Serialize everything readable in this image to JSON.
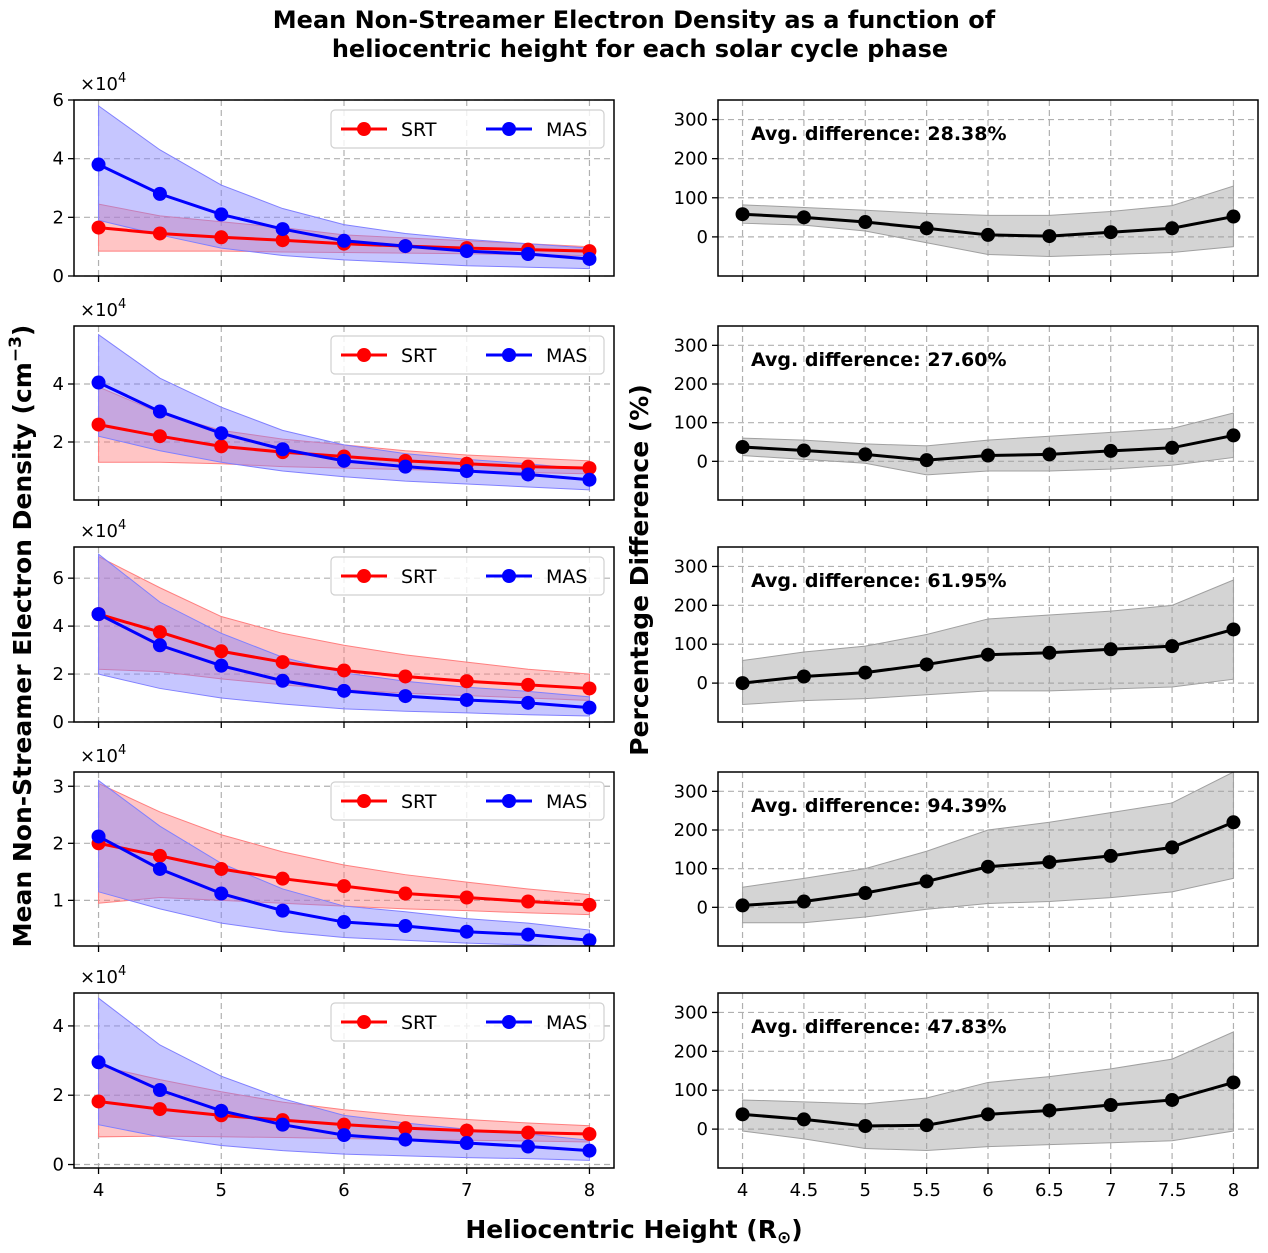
{
  "figure": {
    "title_line1": "Mean Non-Streamer Electron Density as a function of",
    "title_line2": "heliocentric height for each solar cycle phase",
    "xlabel_main": "Heliocentric Height (R",
    "xlabel_sub": "⊙",
    "xlabel_close": ")",
    "ylabel_left_main": "Mean Non-Streamer Electron Density (cm",
    "ylabel_left_sup": "−3",
    "ylabel_left_close": ")",
    "ylabel_right": "Percentage Difference (%)",
    "multiplier_base": "×10",
    "multiplier_exp": "4",
    "colors": {
      "srt": "#ff0000",
      "mas": "#0000ff",
      "diff": "#000000",
      "diff_band": "#a0a0a0"
    }
  },
  "chart_data": [
    {
      "type": "line",
      "panel": "density",
      "row": 1,
      "x": [
        4,
        4.5,
        5,
        5.5,
        6,
        6.5,
        7,
        7.5,
        8
      ],
      "xlim": [
        3.8,
        8.2
      ],
      "ylim": [
        0,
        6
      ],
      "yticks": [
        0,
        2,
        4,
        6
      ],
      "xticks": [
        4,
        5,
        6,
        7,
        8
      ],
      "units_multiplier": "×10^4",
      "legend": [
        "SRT",
        "MAS"
      ],
      "legend_position": "top-right",
      "series": [
        {
          "name": "SRT",
          "color": "#ff0000",
          "values": [
            1.65,
            1.45,
            1.32,
            1.22,
            1.1,
            1.02,
            0.95,
            0.9,
            0.85
          ],
          "lower": [
            0.85,
            0.85,
            0.85,
            0.82,
            0.8,
            0.78,
            0.76,
            0.72,
            0.7
          ],
          "upper": [
            2.45,
            2.05,
            1.85,
            1.65,
            1.4,
            1.3,
            1.2,
            1.1,
            1.0
          ]
        },
        {
          "name": "MAS",
          "color": "#0000ff",
          "values": [
            3.8,
            2.8,
            2.1,
            1.6,
            1.2,
            1.02,
            0.85,
            0.75,
            0.58
          ],
          "lower": [
            1.9,
            1.4,
            0.95,
            0.7,
            0.55,
            0.45,
            0.35,
            0.3,
            0.25
          ],
          "upper": [
            5.8,
            4.3,
            3.1,
            2.3,
            1.75,
            1.45,
            1.25,
            1.1,
            0.95
          ]
        }
      ]
    },
    {
      "type": "line",
      "panel": "difference",
      "row": 1,
      "x": [
        4,
        4.5,
        5,
        5.5,
        6,
        6.5,
        7,
        7.5,
        8
      ],
      "xlim": [
        3.8,
        8.2
      ],
      "ylim": [
        -100,
        350
      ],
      "yticks": [
        0,
        100,
        200,
        300
      ],
      "xticks": [
        4,
        4.5,
        5,
        5.5,
        6,
        6.5,
        7,
        7.5,
        8
      ],
      "annotation": "Avg. difference: 28.38%",
      "series": [
        {
          "name": "Percentage Difference",
          "color": "#000000",
          "values": [
            58,
            50,
            38,
            22,
            5,
            2,
            12,
            22,
            52
          ],
          "lower": [
            35,
            30,
            15,
            -15,
            -45,
            -50,
            -45,
            -40,
            -25
          ],
          "upper": [
            82,
            75,
            68,
            60,
            55,
            55,
            65,
            80,
            130
          ]
        }
      ]
    },
    {
      "type": "line",
      "panel": "density",
      "row": 2,
      "x": [
        4,
        4.5,
        5,
        5.5,
        6,
        6.5,
        7,
        7.5,
        8
      ],
      "xlim": [
        3.8,
        8.2
      ],
      "ylim": [
        0,
        6
      ],
      "yticks": [
        2,
        4
      ],
      "xticks": [
        4,
        5,
        6,
        7,
        8
      ],
      "units_multiplier": "×10^4",
      "legend": [
        "SRT",
        "MAS"
      ],
      "legend_position": "top-right",
      "series": [
        {
          "name": "SRT",
          "color": "#ff0000",
          "values": [
            2.6,
            2.2,
            1.85,
            1.65,
            1.5,
            1.35,
            1.25,
            1.15,
            1.1
          ],
          "lower": [
            1.3,
            1.3,
            1.25,
            1.15,
            1.1,
            1.05,
            1.0,
            0.95,
            0.9
          ],
          "upper": [
            3.9,
            3.0,
            2.4,
            2.1,
            1.9,
            1.7,
            1.55,
            1.45,
            1.35
          ]
        },
        {
          "name": "MAS",
          "color": "#0000ff",
          "values": [
            4.05,
            3.05,
            2.3,
            1.75,
            1.35,
            1.15,
            1.0,
            0.88,
            0.7
          ],
          "lower": [
            2.2,
            1.7,
            1.3,
            1.0,
            0.8,
            0.65,
            0.55,
            0.45,
            0.35
          ],
          "upper": [
            5.7,
            4.2,
            3.2,
            2.4,
            1.9,
            1.6,
            1.4,
            1.25,
            1.05
          ]
        }
      ]
    },
    {
      "type": "line",
      "panel": "difference",
      "row": 2,
      "x": [
        4,
        4.5,
        5,
        5.5,
        6,
        6.5,
        7,
        7.5,
        8
      ],
      "xlim": [
        3.8,
        8.2
      ],
      "ylim": [
        -100,
        350
      ],
      "yticks": [
        0,
        100,
        200,
        300
      ],
      "xticks": [
        4,
        4.5,
        5,
        5.5,
        6,
        6.5,
        7,
        7.5,
        8
      ],
      "annotation": "Avg. difference: 27.60%",
      "series": [
        {
          "name": "Percentage Difference",
          "color": "#000000",
          "values": [
            37,
            28,
            18,
            3,
            15,
            18,
            27,
            35,
            67
          ],
          "lower": [
            15,
            5,
            -5,
            -35,
            -25,
            -25,
            -20,
            -10,
            10
          ],
          "upper": [
            60,
            55,
            45,
            40,
            55,
            65,
            75,
            85,
            125
          ]
        }
      ]
    },
    {
      "type": "line",
      "panel": "density",
      "row": 3,
      "x": [
        4,
        4.5,
        5,
        5.5,
        6,
        6.5,
        7,
        7.5,
        8
      ],
      "xlim": [
        3.8,
        8.2
      ],
      "ylim": [
        0,
        7.3
      ],
      "yticks": [
        0,
        2,
        4,
        6
      ],
      "xticks": [
        4,
        5,
        6,
        7,
        8
      ],
      "units_multiplier": "×10^4",
      "legend": [
        "SRT",
        "MAS"
      ],
      "legend_position": "top-right",
      "series": [
        {
          "name": "SRT",
          "color": "#ff0000",
          "values": [
            4.5,
            3.75,
            2.95,
            2.5,
            2.15,
            1.9,
            1.7,
            1.55,
            1.4
          ],
          "lower": [
            2.2,
            2.1,
            1.8,
            1.55,
            1.35,
            1.2,
            1.1,
            1.0,
            0.9
          ],
          "upper": [
            6.9,
            5.6,
            4.4,
            3.7,
            3.2,
            2.8,
            2.5,
            2.2,
            2.0
          ]
        },
        {
          "name": "MAS",
          "color": "#0000ff",
          "values": [
            4.5,
            3.2,
            2.35,
            1.72,
            1.3,
            1.08,
            0.92,
            0.8,
            0.6
          ],
          "lower": [
            2.0,
            1.4,
            1.0,
            0.75,
            0.55,
            0.45,
            0.38,
            0.3,
            0.25
          ],
          "upper": [
            7.0,
            5.0,
            3.7,
            2.7,
            2.05,
            1.7,
            1.45,
            1.28,
            1.05
          ]
        }
      ]
    },
    {
      "type": "line",
      "panel": "difference",
      "row": 3,
      "x": [
        4,
        4.5,
        5,
        5.5,
        6,
        6.5,
        7,
        7.5,
        8
      ],
      "xlim": [
        3.8,
        8.2
      ],
      "ylim": [
        -100,
        350
      ],
      "yticks": [
        0,
        100,
        200,
        300
      ],
      "xticks": [
        4,
        4.5,
        5,
        5.5,
        6,
        6.5,
        7,
        7.5,
        8
      ],
      "annotation": "Avg. difference: 61.95%",
      "series": [
        {
          "name": "Percentage Difference",
          "color": "#000000",
          "values": [
            0,
            17,
            27,
            48,
            73,
            78,
            87,
            95,
            138
          ],
          "lower": [
            -55,
            -45,
            -40,
            -30,
            -20,
            -20,
            -15,
            -10,
            10
          ],
          "upper": [
            58,
            80,
            95,
            125,
            165,
            175,
            185,
            200,
            265
          ]
        }
      ]
    },
    {
      "type": "line",
      "panel": "difference",
      "row": 4,
      "x": [
        4,
        4.5,
        5,
        5.5,
        6,
        6.5,
        7,
        7.5,
        8
      ],
      "xlim": [
        3.8,
        8.2
      ],
      "ylim": [
        -100,
        350
      ],
      "yticks": [
        0,
        100,
        200,
        300
      ],
      "xticks": [
        4,
        4.5,
        5,
        5.5,
        6,
        6.5,
        7,
        7.5,
        8
      ],
      "annotation": "Avg. difference: 94.39%",
      "series": [
        {
          "name": "Percentage Difference",
          "color": "#000000",
          "values": [
            5,
            15,
            37,
            67,
            105,
            117,
            133,
            155,
            220
          ],
          "lower": [
            -40,
            -40,
            -25,
            -5,
            10,
            15,
            25,
            40,
            75
          ],
          "upper": [
            52,
            75,
            100,
            145,
            200,
            220,
            245,
            270,
            350
          ]
        }
      ]
    },
    {
      "type": "line",
      "panel": "density",
      "row": 4,
      "x": [
        4,
        4.5,
        5,
        5.5,
        6,
        6.5,
        7,
        7.5,
        8
      ],
      "xlim": [
        3.8,
        8.2
      ],
      "ylim": [
        0.2,
        3.25
      ],
      "yticks": [
        1,
        2,
        3
      ],
      "xticks": [
        4,
        5,
        6,
        7,
        8
      ],
      "units_multiplier": "×10^4",
      "legend": [
        "SRT",
        "MAS"
      ],
      "legend_position": "top-right",
      "series": [
        {
          "name": "SRT",
          "color": "#ff0000",
          "values": [
            2.0,
            1.78,
            1.55,
            1.38,
            1.25,
            1.12,
            1.05,
            0.98,
            0.92
          ],
          "lower": [
            0.95,
            1.05,
            1.0,
            0.95,
            0.9,
            0.85,
            0.82,
            0.78,
            0.75
          ],
          "upper": [
            3.05,
            2.55,
            2.15,
            1.85,
            1.62,
            1.45,
            1.32,
            1.2,
            1.1
          ]
        },
        {
          "name": "MAS",
          "color": "#0000ff",
          "values": [
            2.12,
            1.55,
            1.12,
            0.82,
            0.62,
            0.55,
            0.45,
            0.4,
            0.3
          ],
          "lower": [
            1.15,
            0.85,
            0.6,
            0.45,
            0.35,
            0.3,
            0.25,
            0.22,
            0.18
          ],
          "upper": [
            3.1,
            2.3,
            1.65,
            1.2,
            0.9,
            0.8,
            0.68,
            0.6,
            0.48
          ]
        }
      ]
    },
    {
      "type": "line",
      "panel": "density",
      "row": 5,
      "x": [
        4,
        4.5,
        5,
        5.5,
        6,
        6.5,
        7,
        7.5,
        8
      ],
      "xlim": [
        3.8,
        8.2
      ],
      "ylim": [
        -0.1,
        4.95
      ],
      "yticks": [
        0,
        2,
        4
      ],
      "xticks": [
        4,
        5,
        6,
        7,
        8
      ],
      "units_multiplier": "×10^4",
      "legend": [
        "SRT",
        "MAS"
      ],
      "legend_position": "top-right",
      "series": [
        {
          "name": "SRT",
          "color": "#ff0000",
          "values": [
            1.82,
            1.6,
            1.42,
            1.28,
            1.15,
            1.05,
            0.98,
            0.92,
            0.88
          ],
          "lower": [
            0.8,
            0.82,
            0.8,
            0.78,
            0.75,
            0.72,
            0.7,
            0.68,
            0.65
          ],
          "upper": [
            2.85,
            2.45,
            2.1,
            1.8,
            1.58,
            1.42,
            1.3,
            1.2,
            1.12
          ]
        },
        {
          "name": "MAS",
          "color": "#0000ff",
          "values": [
            2.95,
            2.15,
            1.55,
            1.15,
            0.85,
            0.72,
            0.62,
            0.52,
            0.4
          ],
          "lower": [
            1.15,
            0.8,
            0.55,
            0.4,
            0.3,
            0.25,
            0.2,
            0.17,
            0.12
          ],
          "upper": [
            4.8,
            3.45,
            2.55,
            1.9,
            1.42,
            1.2,
            1.02,
            0.88,
            0.7
          ]
        }
      ]
    },
    {
      "type": "line",
      "panel": "difference",
      "row": 5,
      "x": [
        4,
        4.5,
        5,
        5.5,
        6,
        6.5,
        7,
        7.5,
        8
      ],
      "xlim": [
        3.8,
        8.2
      ],
      "ylim": [
        -100,
        350
      ],
      "yticks": [
        0,
        100,
        200,
        300
      ],
      "xticks": [
        4,
        4.5,
        5,
        5.5,
        6,
        6.5,
        7,
        7.5,
        8
      ],
      "annotation": "Avg. difference: 47.83%",
      "series": [
        {
          "name": "Percentage Difference",
          "color": "#000000",
          "values": [
            38,
            25,
            8,
            10,
            38,
            48,
            62,
            75,
            120
          ],
          "lower": [
            -5,
            -25,
            -50,
            -55,
            -45,
            -40,
            -35,
            -30,
            -5
          ],
          "upper": [
            75,
            70,
            65,
            80,
            120,
            135,
            155,
            180,
            250
          ]
        }
      ]
    }
  ]
}
